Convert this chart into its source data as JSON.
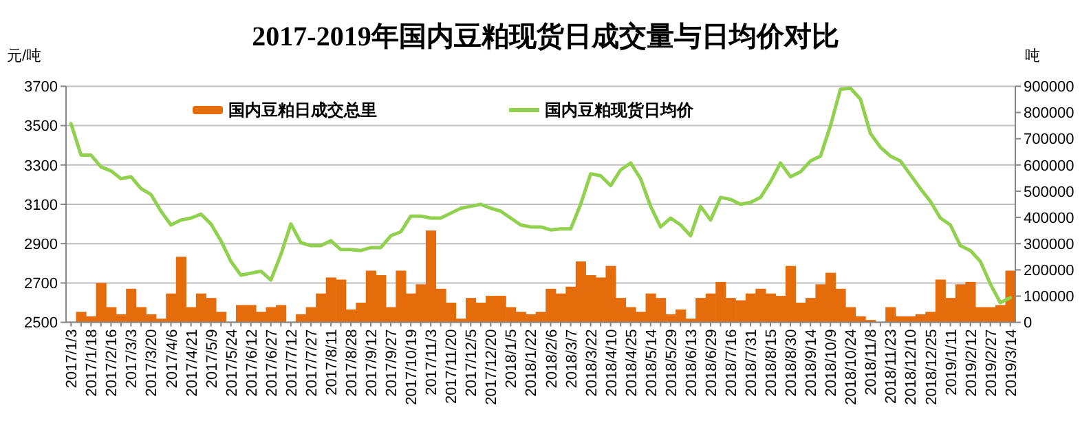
{
  "chart_data": {
    "type": "bar",
    "title": "2017-2019年国内豆粕现货日成交量与日均价对比",
    "ylabel": "元/吨",
    "y2label": "吨",
    "categories": [
      "2017/1/3",
      null,
      "2017/1/18",
      null,
      "2017/2/16",
      null,
      "2017/3/3",
      null,
      "2017/3/20",
      null,
      "2017/4/6",
      null,
      "2017/4/21",
      null,
      "2017/5/9",
      null,
      "2017/5/24",
      null,
      "2017/6/12",
      null,
      "2017/6/27",
      null,
      "2017/7/12",
      null,
      "2017/7/27",
      null,
      "2017/8/11",
      null,
      "2017/8/28",
      null,
      "2017/9/12",
      null,
      "2017/9/27",
      null,
      "2017/10/19",
      null,
      "2017/11/3",
      null,
      "2017/11/20",
      null,
      "2017/12/5",
      null,
      "2017/12/20",
      null,
      "2018/1/5",
      null,
      "2018/1/22",
      null,
      "2018/2/6",
      null,
      "2018/3/7",
      null,
      "2018/3/22",
      null,
      "2018/4/10",
      null,
      "2018/4/25",
      null,
      "2018/5/14",
      null,
      "2018/5/29",
      null,
      "2018/6/13",
      null,
      "2018/6/29",
      null,
      "2018/7/16",
      null,
      "2018/7/31",
      null,
      "2018/8/15",
      null,
      "2018/8/30",
      null,
      "2018/9/14",
      null,
      "2018/10/9",
      null,
      "2018/10/24",
      null,
      "2018/11/8",
      null,
      "2018/11/23",
      null,
      "2018/12/10",
      null,
      "2018/12/25",
      null,
      "2019/1/11",
      null,
      "2019/2/12",
      null,
      "2019/2/27",
      null,
      "2019/3/14"
    ],
    "series": [
      {
        "name": "国内豆粕日成交总里",
        "axis": "y2",
        "color": "#e46c0a",
        "values": [
          null,
          40000,
          23000,
          150000,
          58000,
          31000,
          128000,
          58000,
          31000,
          14000,
          110000,
          250000,
          58000,
          110000,
          93000,
          40000,
          null,
          66000,
          66000,
          40000,
          58000,
          66000,
          null,
          31000,
          58000,
          110000,
          171000,
          163000,
          49000,
          75000,
          197000,
          180000,
          58000,
          197000,
          110000,
          145000,
          350000,
          128000,
          75000,
          14000,
          93000,
          75000,
          101000,
          101000,
          58000,
          40000,
          31000,
          40000,
          128000,
          110000,
          136000,
          232000,
          180000,
          171000,
          215000,
          93000,
          58000,
          40000,
          110000,
          93000,
          31000,
          49000,
          14000,
          93000,
          110000,
          154000,
          93000,
          84000,
          110000,
          128000,
          110000,
          101000,
          215000,
          75000,
          93000,
          145000,
          189000,
          128000,
          58000,
          23000,
          9000,
          null,
          58000,
          23000,
          23000,
          31000,
          40000,
          163000,
          93000,
          145000,
          154000,
          58000,
          58000,
          66000,
          197000
        ]
      },
      {
        "name": "国内豆粕现货日均价",
        "type": "line",
        "axis": "y",
        "color": "#92d050",
        "values": [
          3510,
          3350,
          3350,
          3290,
          3270,
          3230,
          3240,
          3180,
          3150,
          3065,
          2995,
          3020,
          3030,
          3050,
          3000,
          2915,
          2810,
          2740,
          2750,
          2760,
          2715,
          2845,
          3000,
          2905,
          2890,
          2890,
          2915,
          2870,
          2870,
          2865,
          2880,
          2880,
          2940,
          2960,
          3040,
          3040,
          3030,
          3030,
          3055,
          3080,
          3090,
          3100,
          3080,
          3065,
          3030,
          2995,
          2985,
          2985,
          2970,
          2975,
          2975,
          3100,
          3255,
          3245,
          3195,
          3275,
          3310,
          3230,
          3090,
          2985,
          3030,
          2995,
          2940,
          3090,
          3020,
          3135,
          3125,
          3100,
          3110,
          3135,
          3215,
          3310,
          3240,
          3265,
          3320,
          3345,
          3500,
          3685,
          3690,
          3635,
          3460,
          3390,
          3345,
          3320,
          3250,
          3180,
          3115,
          3030,
          2995,
          2890,
          2865,
          2810,
          2695,
          2600,
          2625
        ]
      }
    ],
    "ylim": [
      2500,
      3700
    ],
    "yticks": [
      2500,
      2700,
      2900,
      3100,
      3300,
      3500,
      3700
    ],
    "y2lim": [
      0,
      900000
    ],
    "y2ticks": [
      0,
      100000,
      200000,
      300000,
      400000,
      500000,
      600000,
      700000,
      800000,
      900000
    ],
    "grid": "y",
    "legend": "top"
  }
}
